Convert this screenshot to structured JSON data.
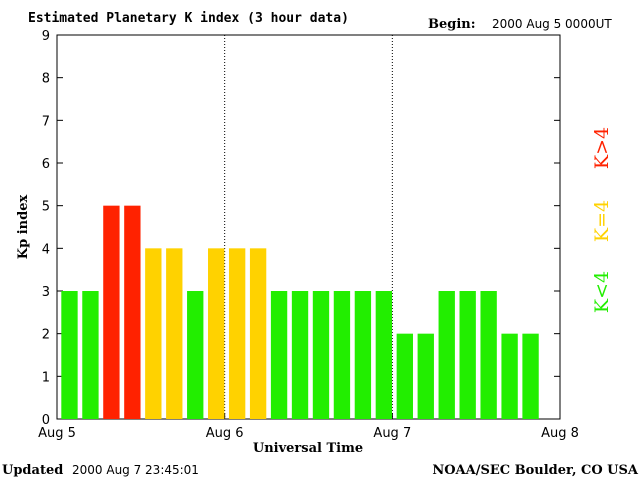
{
  "chart_data": {
    "type": "bar",
    "title": "Estimated Planetary K index (3 hour data)",
    "begin_label": "Begin:",
    "begin_value": "2000 Aug 5 0000UT",
    "xlabel": "Universal Time",
    "ylabel": "Kp index",
    "ylim": [
      0,
      9
    ],
    "yticks": [
      "0",
      "1",
      "2",
      "3",
      "4",
      "5",
      "6",
      "7",
      "8",
      "9"
    ],
    "xlim_days": [
      0,
      3
    ],
    "xticks": [
      {
        "label": "Aug 5",
        "day": 0
      },
      {
        "label": "Aug 6",
        "day": 1
      },
      {
        "label": "Aug 7",
        "day": 2
      },
      {
        "label": "Aug 8",
        "day": 3
      }
    ],
    "day_separators": [
      1,
      2
    ],
    "interval_hours": 3,
    "values": [
      3,
      3,
      5,
      5,
      4,
      4,
      3,
      4,
      4,
      4,
      3,
      3,
      3,
      3,
      3,
      3,
      2,
      2,
      3,
      3,
      3,
      2,
      2
    ],
    "legend": [
      {
        "label": "K<4",
        "color": "#22ee00"
      },
      {
        "label": "K=4",
        "color": "#ffd200"
      },
      {
        "label": "K>4",
        "color": "#ff2200"
      }
    ],
    "colors": {
      "below": "#22ee00",
      "equal": "#ffd200",
      "above": "#ff2200"
    },
    "grid": false
  },
  "footer": {
    "updated_label": "Updated",
    "updated_value": "2000 Aug  7 23:45:01",
    "source": "NOAA/SEC Boulder, CO USA"
  }
}
